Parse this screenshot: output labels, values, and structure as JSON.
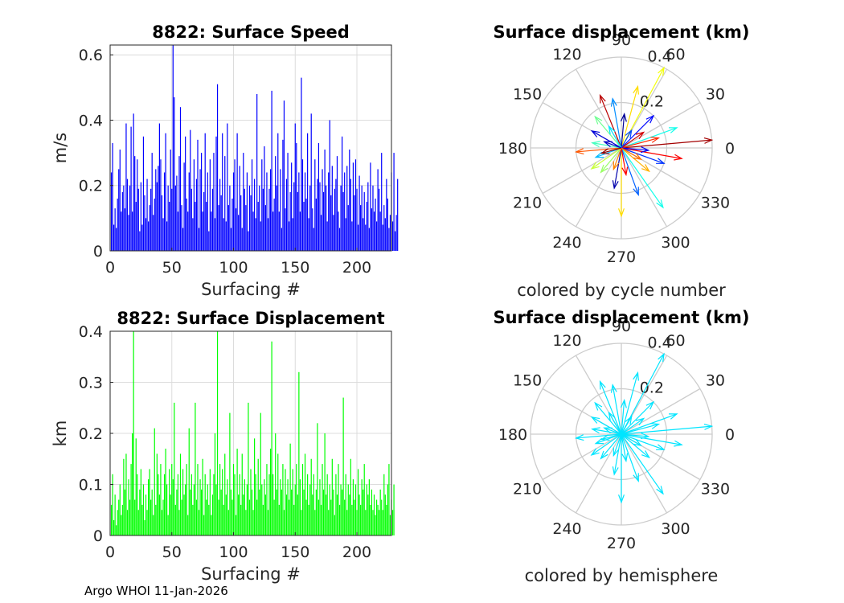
{
  "footer": "Argo WHOI 11-Jan-2026",
  "chart_data": [
    {
      "id": "speed",
      "type": "bar",
      "title": "8822: Surface Speed",
      "xlabel": "Surfacing #",
      "ylabel": "m/s",
      "xlim": [
        0,
        228
      ],
      "ylim": [
        0,
        0.63
      ],
      "xticks": [
        "0",
        "50",
        "100",
        "150",
        "200"
      ],
      "xtick_values": [
        0,
        50,
        100,
        150,
        200
      ],
      "yticks": [
        "0",
        "0.2",
        "0.4",
        "0.6"
      ],
      "ytick_values": [
        0,
        0.2,
        0.4,
        0.6
      ],
      "grid": true,
      "color": "#0000ff",
      "values": [
        0.24,
        0.33,
        0.08,
        0.13,
        0.07,
        0.16,
        0.25,
        0.31,
        0.12,
        0.18,
        0.2,
        0.13,
        0.39,
        0.22,
        0.11,
        0.2,
        0.38,
        0.12,
        0.42,
        0.29,
        0.15,
        0.28,
        0.19,
        0.06,
        0.21,
        0.08,
        0.35,
        0.17,
        0.1,
        0.22,
        0.09,
        0.14,
        0.19,
        0.3,
        0.11,
        0.16,
        0.25,
        0.21,
        0.26,
        0.39,
        0.28,
        0.17,
        0.1,
        0.24,
        0.36,
        0.09,
        0.2,
        0.15,
        0.31,
        0.19,
        0.63,
        0.47,
        0.2,
        0.23,
        0.12,
        0.29,
        0.44,
        0.14,
        0.07,
        0.27,
        0.35,
        0.16,
        0.12,
        0.24,
        0.37,
        0.19,
        0.1,
        0.28,
        0.15,
        0.22,
        0.34,
        0.07,
        0.25,
        0.3,
        0.12,
        0.18,
        0.36,
        0.15,
        0.24,
        0.06,
        0.28,
        0.12,
        0.19,
        0.3,
        0.1,
        0.35,
        0.51,
        0.14,
        0.22,
        0.17,
        0.36,
        0.1,
        0.29,
        0.09,
        0.39,
        0.14,
        0.2,
        0.07,
        0.16,
        0.24,
        0.28,
        0.13,
        0.36,
        0.11,
        0.26,
        0.17,
        0.07,
        0.3,
        0.19,
        0.14,
        0.24,
        0.06,
        0.2,
        0.17,
        0.28,
        0.12,
        0.22,
        0.1,
        0.48,
        0.15,
        0.2,
        0.09,
        0.28,
        0.19,
        0.32,
        0.14,
        0.24,
        0.1,
        0.19,
        0.25,
        0.49,
        0.12,
        0.16,
        0.29,
        0.2,
        0.36,
        0.12,
        0.25,
        0.07,
        0.34,
        0.46,
        0.13,
        0.22,
        0.3,
        0.09,
        0.18,
        0.27,
        0.1,
        0.21,
        0.39,
        0.33,
        0.18,
        0.24,
        0.12,
        0.53,
        0.28,
        0.15,
        0.24,
        0.16,
        0.36,
        0.1,
        0.2,
        0.42,
        0.13,
        0.07,
        0.28,
        0.16,
        0.22,
        0.33,
        0.21,
        0.11,
        0.25,
        0.18,
        0.31,
        0.2,
        0.09,
        0.24,
        0.4,
        0.17,
        0.26,
        0.11,
        0.19,
        0.22,
        0.29,
        0.12,
        0.07,
        0.2,
        0.35,
        0.18,
        0.24,
        0.1,
        0.26,
        0.14,
        0.31,
        0.22,
        0.09,
        0.27,
        0.17,
        0.28,
        0.19,
        0.08,
        0.23,
        0.14,
        0.2,
        0.1,
        0.18,
        0.08,
        0.15,
        0.21,
        0.07,
        0.27,
        0.13,
        0.2,
        0.12,
        0.16,
        0.09,
        0.25,
        0.19,
        0.12,
        0.3,
        0.08,
        0.14,
        0.1,
        0.22,
        0.16,
        0.07,
        0.11,
        0.24,
        0.09,
        0.3,
        0.06,
        0.11,
        0.22
      ]
    },
    {
      "id": "displacement",
      "type": "bar",
      "title": "8822: Surface Displacement",
      "xlabel": "Surfacing #",
      "ylabel": "km",
      "xlim": [
        0,
        228
      ],
      "ylim": [
        0,
        0.4
      ],
      "xticks": [
        "0",
        "50",
        "100",
        "150",
        "200"
      ],
      "xtick_values": [
        0,
        50,
        100,
        150,
        200
      ],
      "yticks": [
        "0",
        "0.1",
        "0.2",
        "0.3",
        "0.4"
      ],
      "ytick_values": [
        0,
        0.1,
        0.2,
        0.3,
        0.4
      ],
      "grid": true,
      "color": "#00ff00",
      "values": [
        0.06,
        0.12,
        0.03,
        0.08,
        0.02,
        0.05,
        0.07,
        0.1,
        0.04,
        0.06,
        0.15,
        0.09,
        0.16,
        0.05,
        0.11,
        0.07,
        0.14,
        0.2,
        0.4,
        0.07,
        0.19,
        0.12,
        0.05,
        0.09,
        0.13,
        0.06,
        0.1,
        0.03,
        0.08,
        0.05,
        0.11,
        0.13,
        0.07,
        0.09,
        0.04,
        0.21,
        0.06,
        0.16,
        0.12,
        0.08,
        0.14,
        0.05,
        0.07,
        0.12,
        0.17,
        0.1,
        0.04,
        0.13,
        0.08,
        0.14,
        0.11,
        0.26,
        0.06,
        0.09,
        0.12,
        0.05,
        0.16,
        0.07,
        0.13,
        0.08,
        0.1,
        0.14,
        0.04,
        0.21,
        0.09,
        0.12,
        0.06,
        0.1,
        0.26,
        0.07,
        0.14,
        0.05,
        0.11,
        0.09,
        0.15,
        0.04,
        0.12,
        0.07,
        0.1,
        0.06,
        0.13,
        0.04,
        0.08,
        0.12,
        0.2,
        0.1,
        0.4,
        0.07,
        0.14,
        0.09,
        0.13,
        0.06,
        0.16,
        0.08,
        0.11,
        0.05,
        0.24,
        0.09,
        0.07,
        0.14,
        0.12,
        0.04,
        0.17,
        0.08,
        0.12,
        0.06,
        0.16,
        0.08,
        0.11,
        0.05,
        0.1,
        0.26,
        0.07,
        0.13,
        0.09,
        0.05,
        0.19,
        0.12,
        0.07,
        0.15,
        0.09,
        0.24,
        0.1,
        0.06,
        0.11,
        0.08,
        0.14,
        0.05,
        0.12,
        0.17,
        0.38,
        0.12,
        0.07,
        0.2,
        0.09,
        0.16,
        0.06,
        0.11,
        0.09,
        0.14,
        0.05,
        0.13,
        0.08,
        0.11,
        0.07,
        0.18,
        0.09,
        0.13,
        0.06,
        0.1,
        0.14,
        0.08,
        0.32,
        0.11,
        0.05,
        0.14,
        0.09,
        0.16,
        0.07,
        0.12,
        0.06,
        0.1,
        0.15,
        0.08,
        0.12,
        0.05,
        0.09,
        0.22,
        0.07,
        0.11,
        0.06,
        0.14,
        0.09,
        0.2,
        0.08,
        0.12,
        0.05,
        0.1,
        0.07,
        0.15,
        0.09,
        0.04,
        0.12,
        0.08,
        0.14,
        0.06,
        0.1,
        0.09,
        0.27,
        0.07,
        0.12,
        0.05,
        0.1,
        0.08,
        0.15,
        0.06,
        0.11,
        0.07,
        0.1,
        0.05,
        0.13,
        0.08,
        0.06,
        0.11,
        0.09,
        0.14,
        0.05,
        0.1,
        0.08,
        0.11,
        0.06,
        0.09,
        0.05,
        0.08,
        0.04,
        0.07,
        0.06,
        0.05,
        0.09,
        0.07,
        0.05,
        0.12,
        0.08,
        0.06,
        0.1,
        0.14,
        0.04,
        0.07,
        0.05,
        0.1
      ]
    },
    {
      "id": "polar-cycle",
      "type": "polar-vector",
      "title": "Surface displacement (km)",
      "caption": "colored by cycle number",
      "rmax": 0.4,
      "rticks": [
        "0.2",
        "0.4"
      ],
      "rtick_values": [
        0.2,
        0.4
      ],
      "angle_ticks": [
        "0",
        "30",
        "60",
        "90",
        "120",
        "150",
        "180",
        "210",
        "240",
        "270",
        "300",
        "330"
      ],
      "angle_tick_values": [
        0,
        30,
        60,
        90,
        120,
        150,
        180,
        210,
        240,
        270,
        300,
        330
      ],
      "colormap": "jet",
      "vectors": [
        {
          "angle_deg": 5,
          "r": 0.4,
          "cycle": 220
        },
        {
          "angle_deg": 62,
          "r": 0.4,
          "cycle": 140
        },
        {
          "angle_deg": 75,
          "r": 0.28,
          "cycle": 150
        },
        {
          "angle_deg": 112,
          "r": 0.25,
          "cycle": 215
        },
        {
          "angle_deg": 270,
          "r": 0.3,
          "cycle": 150
        },
        {
          "angle_deg": 305,
          "r": 0.32,
          "cycle": 90
        },
        {
          "angle_deg": 20,
          "r": 0.26,
          "cycle": 90
        },
        {
          "angle_deg": 340,
          "r": 0.2,
          "cycle": 40
        },
        {
          "angle_deg": 350,
          "r": 0.27,
          "cycle": 200
        },
        {
          "angle_deg": 185,
          "r": 0.2,
          "cycle": 180
        },
        {
          "angle_deg": 150,
          "r": 0.15,
          "cycle": 20
        },
        {
          "angle_deg": 100,
          "r": 0.22,
          "cycle": 60
        },
        {
          "angle_deg": 45,
          "r": 0.2,
          "cycle": 30
        },
        {
          "angle_deg": 230,
          "r": 0.14,
          "cycle": 120
        },
        {
          "angle_deg": 260,
          "r": 0.18,
          "cycle": 10
        },
        {
          "angle_deg": 320,
          "r": 0.16,
          "cycle": 160
        },
        {
          "angle_deg": 200,
          "r": 0.12,
          "cycle": 70
        },
        {
          "angle_deg": 130,
          "r": 0.18,
          "cycle": 110
        },
        {
          "angle_deg": 85,
          "r": 0.15,
          "cycle": 5
        },
        {
          "angle_deg": 15,
          "r": 0.17,
          "cycle": 190
        },
        {
          "angle_deg": 170,
          "r": 0.13,
          "cycle": 100
        },
        {
          "angle_deg": 250,
          "r": 0.1,
          "cycle": 170
        },
        {
          "angle_deg": 35,
          "r": 0.12,
          "cycle": 210
        },
        {
          "angle_deg": 290,
          "r": 0.22,
          "cycle": 50
        },
        {
          "angle_deg": 215,
          "r": 0.16,
          "cycle": 130
        },
        {
          "angle_deg": 120,
          "r": 0.11,
          "cycle": 80
        },
        {
          "angle_deg": 355,
          "r": 0.12,
          "cycle": 25
        },
        {
          "angle_deg": 195,
          "r": 0.09,
          "cycle": 225
        },
        {
          "angle_deg": 60,
          "r": 0.09,
          "cycle": 45
        },
        {
          "angle_deg": 160,
          "r": 0.08,
          "cycle": 15
        },
        {
          "angle_deg": 280,
          "r": 0.12,
          "cycle": 200
        },
        {
          "angle_deg": 330,
          "r": 0.1,
          "cycle": 175
        }
      ]
    },
    {
      "id": "polar-hemisphere",
      "type": "polar-vector",
      "title": "Surface displacement (km)",
      "caption": "colored by hemisphere",
      "rmax": 0.4,
      "rticks": [
        "0.2",
        "0.4"
      ],
      "rtick_values": [
        0.2,
        0.4
      ],
      "angle_ticks": [
        "0",
        "30",
        "60",
        "90",
        "120",
        "150",
        "180",
        "210",
        "240",
        "270",
        "300",
        "330"
      ],
      "angle_tick_values": [
        0,
        30,
        60,
        90,
        120,
        150,
        180,
        210,
        240,
        270,
        300,
        330
      ],
      "color": "#00e5ff",
      "vectors": [
        {
          "angle_deg": 5,
          "r": 0.4
        },
        {
          "angle_deg": 62,
          "r": 0.4
        },
        {
          "angle_deg": 75,
          "r": 0.28
        },
        {
          "angle_deg": 112,
          "r": 0.25
        },
        {
          "angle_deg": 270,
          "r": 0.3
        },
        {
          "angle_deg": 305,
          "r": 0.32
        },
        {
          "angle_deg": 20,
          "r": 0.26
        },
        {
          "angle_deg": 340,
          "r": 0.2
        },
        {
          "angle_deg": 350,
          "r": 0.27
        },
        {
          "angle_deg": 185,
          "r": 0.2
        },
        {
          "angle_deg": 150,
          "r": 0.15
        },
        {
          "angle_deg": 100,
          "r": 0.22
        },
        {
          "angle_deg": 45,
          "r": 0.2
        },
        {
          "angle_deg": 230,
          "r": 0.14
        },
        {
          "angle_deg": 260,
          "r": 0.18
        },
        {
          "angle_deg": 320,
          "r": 0.16
        },
        {
          "angle_deg": 200,
          "r": 0.12
        },
        {
          "angle_deg": 130,
          "r": 0.18
        },
        {
          "angle_deg": 85,
          "r": 0.15
        },
        {
          "angle_deg": 15,
          "r": 0.17
        },
        {
          "angle_deg": 170,
          "r": 0.13
        },
        {
          "angle_deg": 250,
          "r": 0.1
        },
        {
          "angle_deg": 35,
          "r": 0.12
        },
        {
          "angle_deg": 290,
          "r": 0.22
        },
        {
          "angle_deg": 215,
          "r": 0.16
        },
        {
          "angle_deg": 120,
          "r": 0.11
        },
        {
          "angle_deg": 355,
          "r": 0.12
        },
        {
          "angle_deg": 195,
          "r": 0.09
        },
        {
          "angle_deg": 60,
          "r": 0.09
        },
        {
          "angle_deg": 160,
          "r": 0.08
        },
        {
          "angle_deg": 280,
          "r": 0.12
        },
        {
          "angle_deg": 330,
          "r": 0.1
        }
      ]
    }
  ]
}
